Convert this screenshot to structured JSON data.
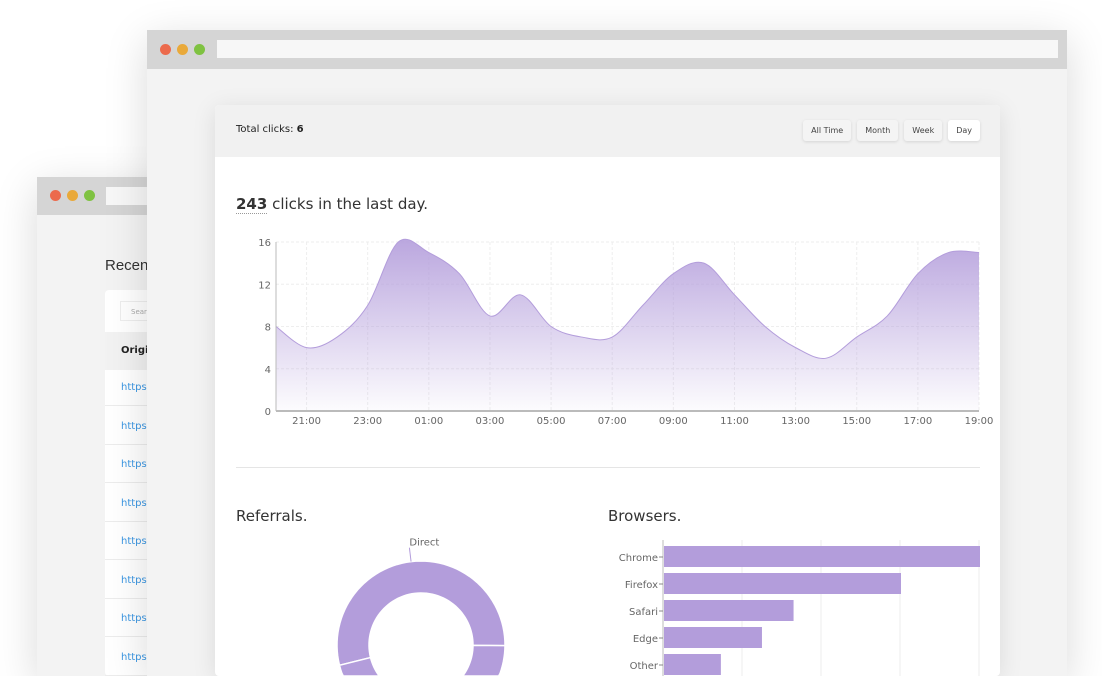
{
  "back_window": {
    "title": "Recent",
    "search_placeholder": "Search",
    "column_header": "Original URL",
    "rows": [
      "https:",
      "https:",
      "https:",
      "https:",
      "https:",
      "https:",
      "https:",
      "https:"
    ]
  },
  "header": {
    "total_label": "Total clicks:",
    "total_value": "6",
    "buttons": [
      "All Time",
      "Month",
      "Week",
      "Day"
    ],
    "active": "Day"
  },
  "headline": {
    "count": "243",
    "text": " clicks in the last day."
  },
  "sections": {
    "referrals": "Referrals.",
    "browsers": "Browsers."
  },
  "colors": {
    "accent": "#b39ddb",
    "close": "#ec6a4c",
    "minimize": "#e9a93a",
    "maximize": "#7fc241"
  },
  "chart_data": [
    {
      "type": "area",
      "x": [
        "20:00",
        "21:00",
        "22:00",
        "23:00",
        "00:00",
        "01:00",
        "02:00",
        "03:00",
        "04:00",
        "05:00",
        "06:00",
        "07:00",
        "08:00",
        "09:00",
        "10:00",
        "11:00",
        "12:00",
        "13:00",
        "14:00",
        "15:00",
        "16:00",
        "17:00",
        "18:00",
        "19:00"
      ],
      "values": [
        8,
        6,
        7,
        10,
        16,
        15,
        13,
        9,
        11,
        8,
        7,
        7,
        10,
        13,
        14,
        11,
        8,
        6,
        5,
        7,
        9,
        13,
        15,
        15
      ],
      "xticks": [
        "21:00",
        "23:00",
        "01:00",
        "03:00",
        "05:00",
        "07:00",
        "09:00",
        "11:00",
        "13:00",
        "15:00",
        "17:00",
        "19:00"
      ],
      "yticks": [
        "0",
        "4",
        "8",
        "12",
        "16"
      ],
      "ylim": [
        0,
        16
      ],
      "grid": true
    },
    {
      "type": "pie",
      "donut": true,
      "slices": [
        {
          "label": "Direct",
          "value": 54
        },
        {
          "label": "",
          "value": 46
        }
      ]
    },
    {
      "type": "bar",
      "orientation": "horizontal",
      "categories": [
        "Chrome",
        "Firefox",
        "Safari",
        "Edge",
        "Other"
      ],
      "values": [
        100,
        75,
        41,
        31,
        18
      ],
      "xlim": [
        0,
        100
      ],
      "grid": true
    }
  ]
}
